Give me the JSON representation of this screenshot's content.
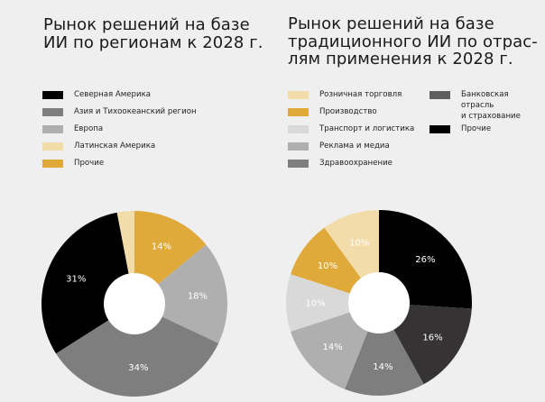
{
  "chart_data": [
    {
      "type": "pie",
      "variant": "donut",
      "title_lines": [
        "Рынок решений на базе",
        "ИИ по регионам к 2028 г."
      ],
      "legend": [
        "Северная Америка",
        "Азия и Тихоокеанский регион",
        "Европа",
        "Латинская Америка",
        "Прочие"
      ],
      "legend_colors": [
        "#000000",
        "#7f7e7e",
        "#b0afaf",
        "#f1dcaa",
        "#e0aa3b"
      ],
      "slices_clockwise_from_top": [
        {
          "name": "Прочие",
          "value": 14,
          "label": "14%",
          "color": "#e0aa3b"
        },
        {
          "name": "Европа",
          "value": 18,
          "label": "18%",
          "color": "#b0afaf"
        },
        {
          "name": "Азия и Тихоокеанский регион",
          "value": 34,
          "label": "34%",
          "color": "#7f7e7e"
        },
        {
          "name": "Северная Америка",
          "value": 31,
          "label": "31%",
          "color": "#000000"
        },
        {
          "name": "Латинская Америка",
          "value": 3,
          "label": "",
          "color": "#f1dcaa"
        }
      ]
    },
    {
      "type": "pie",
      "variant": "donut",
      "title_lines": [
        "Рынок решений на базе",
        "традиционного ИИ по отрас-",
        "лям применения к 2028 г."
      ],
      "legend": [
        "Розничная торговля",
        "Производство",
        "Транспорт и логистика",
        "Реклама и медиа",
        "Здравоохранение",
        "Банковская отрасль и страхование",
        "Прочие"
      ],
      "legend_colors": [
        "#f1dcaa",
        "#e0aa3b",
        "#d9d9d9",
        "#b0afaf",
        "#7f7e7e",
        "#5f5e5e",
        "#000000"
      ],
      "banking_label_lines": [
        "Банковская",
        "отрасль",
        "и страхование"
      ],
      "slices_clockwise_from_top": [
        {
          "name": "Прочие",
          "value": 26,
          "label": "26%",
          "color": "#000000"
        },
        {
          "name": "Банковская отрасль и страхование",
          "value": 16,
          "label": "16%",
          "color": "#353334"
        },
        {
          "name": "Здравоохранение",
          "value": 14,
          "label": "14%",
          "color": "#7f7e7e"
        },
        {
          "name": "Реклама и медиа",
          "value": 14,
          "label": "14%",
          "color": "#b0afaf"
        },
        {
          "name": "Транспорт и логистика",
          "value": 10,
          "label": "10%",
          "color": "#d9d9d9"
        },
        {
          "name": "Производство",
          "value": 10,
          "label": "10%",
          "color": "#e0aa3b"
        },
        {
          "name": "Розничная торговля",
          "value": 10,
          "label": "10%",
          "color": "#f1dcaa"
        }
      ]
    }
  ]
}
